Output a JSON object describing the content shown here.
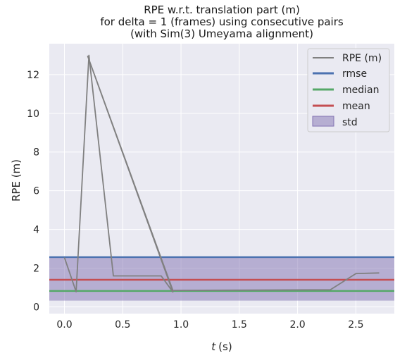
{
  "chart_data": {
    "type": "line",
    "title_lines": [
      "RPE w.r.t. translation part (m)",
      "for delta = 1 (frames) using consecutive pairs",
      "(with Sim(3) Umeyama alignment)"
    ],
    "xlabel_symbol": "t",
    "xlabel_unit": "(s)",
    "ylabel": "RPE (m)",
    "xlim": [
      -0.13,
      2.83
    ],
    "ylim": [
      -0.35,
      13.6
    ],
    "xticks": [
      "0.0",
      "0.5",
      "1.0",
      "1.5",
      "2.0",
      "2.5"
    ],
    "xtick_values": [
      0.0,
      0.5,
      1.0,
      1.5,
      2.0,
      2.5
    ],
    "yticks": [
      "0",
      "2",
      "4",
      "6",
      "8",
      "10",
      "12"
    ],
    "ytick_values": [
      0,
      2,
      4,
      6,
      8,
      10,
      12
    ],
    "grid": true,
    "legend_position": "top-right",
    "series": [
      {
        "name": "RPE (m)",
        "color": "#808080",
        "x": [
          0.0,
          0.1,
          0.21,
          0.42,
          0.83,
          0.93,
          0.2,
          0.93,
          2.28,
          2.5,
          2.7
        ],
        "y": [
          2.55,
          0.78,
          13.0,
          1.6,
          1.6,
          0.77,
          12.95,
          0.85,
          0.88,
          1.72,
          1.75
        ]
      }
    ],
    "rmse": {
      "name": "rmse",
      "value": 2.57,
      "color": "#4c72b0"
    },
    "median": {
      "name": "median",
      "value": 0.82,
      "color": "#55a868"
    },
    "mean": {
      "name": "mean",
      "value": 1.4,
      "color": "#c44e52"
    },
    "std": {
      "name": "std",
      "lower": 0.32,
      "upper": 2.6,
      "color": "#8172b2"
    }
  }
}
